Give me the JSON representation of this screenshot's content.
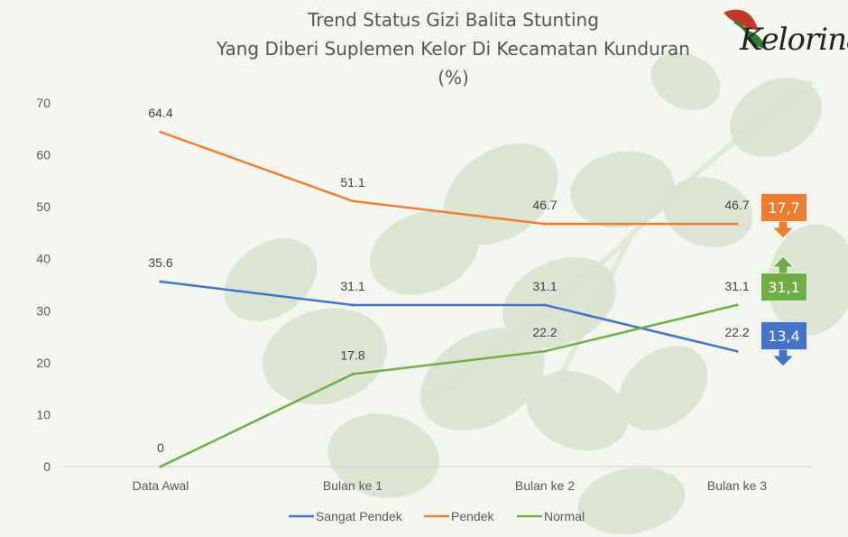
{
  "title_lines": [
    "Trend Status Gizi Balita Stunting",
    "Yang Diberi Suplemen Kelor Di Kecamatan Kunduran",
    "(%)"
  ],
  "logo": {
    "text": "elorina",
    "letter": "K"
  },
  "chart_data": {
    "type": "line",
    "categories": [
      "Data Awal",
      "Bulan ke 1",
      "Bulan ke 2",
      "Bulan ke 3"
    ],
    "ylim": [
      0,
      70
    ],
    "yticks": [
      0,
      10,
      20,
      30,
      40,
      50,
      60,
      70
    ],
    "grid": false,
    "legend": "bottom",
    "series": [
      {
        "name": "Sangat Pendek",
        "color": "#4472c4",
        "values": [
          35.6,
          31.1,
          31.1,
          22.2
        ],
        "labels": [
          "35.6",
          "31.1",
          "31.1",
          "22.2"
        ]
      },
      {
        "name": "Pendek",
        "color": "#ed7d31",
        "values": [
          64.4,
          51.1,
          46.7,
          46.7
        ],
        "labels": [
          "64.4",
          "51.1",
          "46.7",
          "46.7"
        ]
      },
      {
        "name": "Normal",
        "color": "#70ad47",
        "values": [
          0,
          17.8,
          22.2,
          31.1
        ],
        "labels": [
          "0",
          "17.8",
          "22.2",
          "31.1"
        ]
      }
    ]
  },
  "badges": [
    {
      "text": "17,7",
      "color": "#ed7d31",
      "direction": "down",
      "series": "Pendek"
    },
    {
      "text": "31,1",
      "color": "#70ad47",
      "direction": "up",
      "series": "Normal"
    },
    {
      "text": "13,4",
      "color": "#4472c4",
      "direction": "down",
      "series": "Sangat Pendek"
    }
  ]
}
